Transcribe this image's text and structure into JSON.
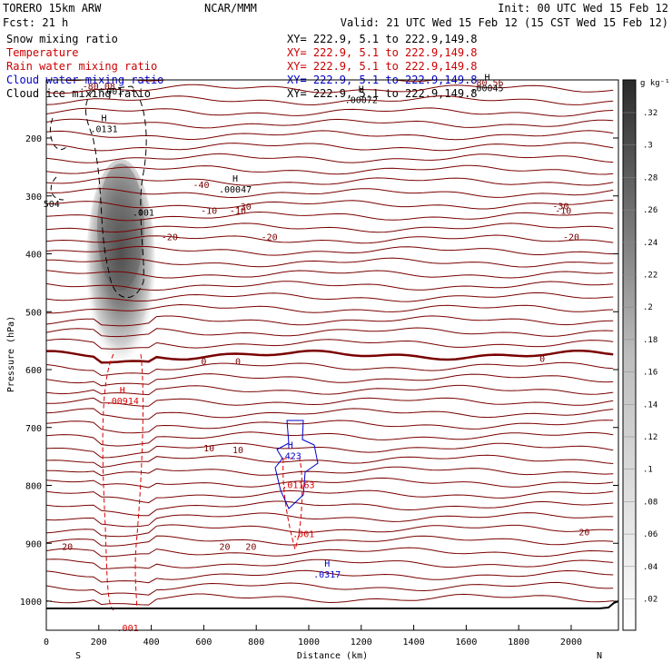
{
  "header": {
    "model": "TORERO  15km ARW",
    "center": "NCAR/MMM",
    "init": "Init: 00 UTC Wed 15 Feb 12",
    "fcst": "Fcst:    21 h",
    "valid": "Valid: 21 UTC Wed 15 Feb 12 (15 CST Wed 15 Feb 12)"
  },
  "fields": [
    {
      "name": "Snow mixing ratio",
      "xy": "XY= 222.9,  5.1 to 222.9,149.8",
      "color": "#000000"
    },
    {
      "name": "Temperature",
      "xy": "XY= 222.9,  5.1 to 222.9,149.8",
      "color": "#cc0000"
    },
    {
      "name": "Rain water mixing ratio",
      "xy": "XY= 222.9,  5.1 to 222.9,149.8",
      "color": "#cc0000"
    },
    {
      "name": "Cloud water mixing ratio",
      "xy": "XY= 222.9,  5.1 to 222.9,149.8",
      "color": "#0000cc"
    },
    {
      "name": "Cloud ice mixing ratio",
      "xy": "XY= 222.9,  5.1 to 222.9,149.8",
      "color": "#000000"
    }
  ],
  "colorbar": {
    "unit": "g kg⁻¹",
    "labels": [
      ".32",
      ".3",
      ".28",
      ".26",
      ".24",
      ".22",
      ".2",
      ".18",
      ".16",
      ".14",
      ".12",
      ".1",
      ".08",
      ".06",
      ".04",
      ".02"
    ]
  },
  "colors": {
    "temperature": "#7a0000",
    "zero_isotherm": "#7a0000",
    "rain": "#dd0000",
    "cloud_water": "#0000cc",
    "ground": "#000000"
  },
  "chart_data": {
    "type": "contour",
    "xlabel": "Distance (km)",
    "ylabel": "Pressure (hPa)",
    "xlim": [
      0,
      2180
    ],
    "ylim": [
      1050,
      100
    ],
    "xticks": [
      0,
      200,
      400,
      600,
      800,
      1000,
      1200,
      1400,
      1600,
      1800,
      2000
    ],
    "yticks": [
      200,
      300,
      400,
      500,
      600,
      700,
      800,
      900,
      1000
    ],
    "endpoints": {
      "left": "S",
      "right": "N"
    },
    "temperature_labels": [
      {
        "x": 200,
        "p": 110,
        "text": "-80.08"
      },
      {
        "x": 590,
        "p": 280,
        "text": "-40"
      },
      {
        "x": 750,
        "p": 318,
        "text": "-30"
      },
      {
        "x": 1960,
        "p": 317,
        "text": "-30"
      },
      {
        "x": 470,
        "p": 370,
        "text": "-20"
      },
      {
        "x": 850,
        "p": 370,
        "text": "-20"
      },
      {
        "x": 2000,
        "p": 370,
        "text": "-20"
      },
      {
        "x": 620,
        "p": 325,
        "text": "-10"
      },
      {
        "x": 730,
        "p": 325,
        "text": "-10"
      },
      {
        "x": 1970,
        "p": 325,
        "text": "-10"
      },
      {
        "x": 600,
        "p": 585,
        "text": "0"
      },
      {
        "x": 730,
        "p": 585,
        "text": "0"
      },
      {
        "x": 1890,
        "p": 580,
        "text": "0"
      },
      {
        "x": 620,
        "p": 735,
        "text": "10"
      },
      {
        "x": 730,
        "p": 738,
        "text": "10"
      },
      {
        "x": 80,
        "p": 905,
        "text": "20"
      },
      {
        "x": 680,
        "p": 905,
        "text": "20"
      },
      {
        "x": 780,
        "p": 905,
        "text": "20"
      },
      {
        "x": 2050,
        "p": 880,
        "text": "20"
      }
    ],
    "extrema": [
      {
        "x": 220,
        "p": 180,
        "label": "H",
        "value": ".0131",
        "field": "cloud_ice"
      },
      {
        "x": 250,
        "p": 115,
        "label": "",
        "value": ".001",
        "field": "cloud_ice"
      },
      {
        "x": 720,
        "p": 285,
        "label": "H",
        "value": ".00047",
        "field": "snow"
      },
      {
        "x": 1200,
        "p": 130,
        "label": "H",
        "value": ".00072",
        "field": "snow"
      },
      {
        "x": 1680,
        "p": 110,
        "label": "H",
        "value": ".00045",
        "field": "snow"
      },
      {
        "x": 1680,
        "p": 100,
        "label": "",
        "value": "-80.56",
        "field": "temperature"
      },
      {
        "x": 20,
        "p": 310,
        "label": "",
        "value": "504",
        "field": "snow"
      },
      {
        "x": 370,
        "p": 325,
        "label": "",
        "value": ".001",
        "field": "snow"
      },
      {
        "x": 290,
        "p": 650,
        "label": "H",
        "value": ".00914",
        "field": "rain"
      },
      {
        "x": 310,
        "p": 1042,
        "label": "",
        "value": ".001",
        "field": "rain"
      },
      {
        "x": 930,
        "p": 745,
        "label": "H",
        "value": ".423",
        "field": "cloud_water"
      },
      {
        "x": 960,
        "p": 795,
        "label": "",
        "value": ".01163",
        "field": "rain"
      },
      {
        "x": 980,
        "p": 880,
        "label": "",
        "value": ".001",
        "field": "rain"
      },
      {
        "x": 1070,
        "p": 950,
        "label": "H",
        "value": ".0317",
        "field": "cloud_water"
      }
    ]
  }
}
